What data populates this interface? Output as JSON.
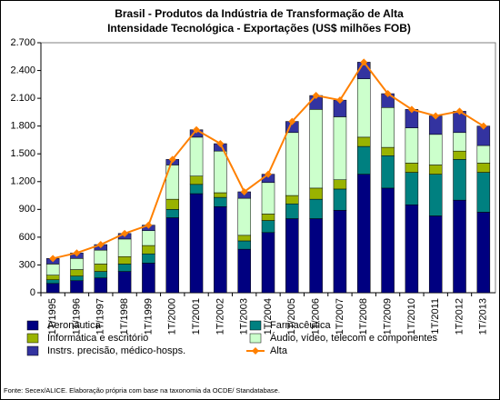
{
  "chart_data": {
    "type": "bar",
    "stacked": true,
    "title": [
      "Brasil - Produtos da Indústria de Transformação de Alta",
      "Intensidade Tecnológica - Exportações (US$ milhões FOB)"
    ],
    "categories": [
      "1T/1995",
      "1T/1996",
      "1T/1997",
      "1T/1998",
      "1T/1999",
      "1T/2000",
      "1T/2001",
      "1T/2002",
      "1T/2003",
      "1T/2004",
      "1T/2005",
      "1T/2006",
      "1T/2007",
      "1T/2008",
      "1T/2009",
      "1T/2010",
      "1T/2011",
      "1T/2012",
      "1T/2013"
    ],
    "series": [
      {
        "name": "Aeronáutica",
        "color": "#000080",
        "values": [
          100,
          130,
          160,
          230,
          320,
          810,
          1070,
          930,
          470,
          650,
          800,
          800,
          890,
          1280,
          1130,
          950,
          830,
          1000,
          870
        ]
      },
      {
        "name": "Farmacêutica",
        "color": "#008080",
        "values": [
          40,
          50,
          70,
          80,
          100,
          90,
          100,
          100,
          90,
          130,
          160,
          210,
          230,
          300,
          350,
          350,
          450,
          440,
          430
        ]
      },
      {
        "name": "Informática e escritório",
        "color": "#99b300",
        "values": [
          50,
          70,
          80,
          80,
          90,
          110,
          90,
          50,
          60,
          70,
          90,
          120,
          100,
          100,
          90,
          100,
          100,
          90,
          100
        ]
      },
      {
        "name": "Áudio, vídeo, telecom e componentes",
        "color": "#ccffcc",
        "values": [
          120,
          120,
          150,
          190,
          160,
          370,
          420,
          450,
          400,
          340,
          680,
          850,
          680,
          630,
          430,
          380,
          330,
          200,
          190
        ]
      },
      {
        "name": "Instrs. precisão, médico-hosps.",
        "color": "#3333a0",
        "values": [
          60,
          60,
          60,
          60,
          60,
          60,
          80,
          80,
          70,
          90,
          120,
          150,
          180,
          180,
          150,
          200,
          200,
          230,
          210
        ]
      },
      {
        "name": "Alta",
        "type": "line",
        "color": "#ff8000",
        "values": [
          370,
          430,
          520,
          640,
          730,
          1440,
          1760,
          1610,
          1090,
          1280,
          1850,
          2130,
          2080,
          2490,
          2150,
          1980,
          1910,
          1960,
          1800
        ]
      }
    ],
    "ylim": [
      0,
      2700
    ],
    "yticks": [
      0,
      300,
      600,
      900,
      {
        "value": 1200,
        "label": "1.200"
      },
      {
        "value": 1500,
        "label": "1.500"
      },
      {
        "value": 1800,
        "label": "1.800"
      },
      {
        "value": 2100,
        "label": "2.100"
      },
      {
        "value": 2400,
        "label": "2.400"
      },
      {
        "value": 2700,
        "label": "2.700"
      }
    ],
    "grid": false,
    "source": "Fonte: Secex/ALICE. Elaboração própria com base na taxonomia da OCDE/ Standatabase."
  }
}
